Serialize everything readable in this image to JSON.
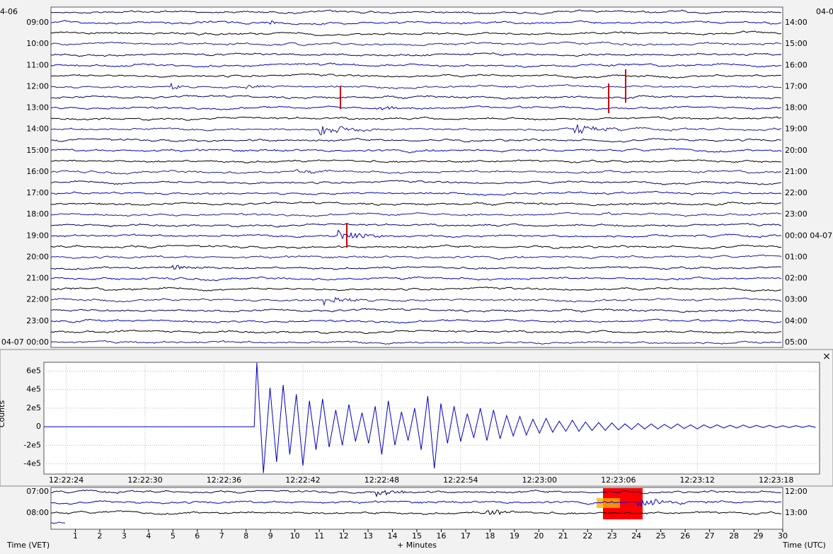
{
  "top_helicorder": {
    "corner_left": "4-06",
    "corner_right": "04-0",
    "left_labels": [
      "09:00",
      "10:00",
      "11:00",
      "12:00",
      "13:00",
      "14:00",
      "15:00",
      "16:00",
      "17:00",
      "18:00",
      "19:00",
      "20:00",
      "21:00",
      "22:00",
      "23:00",
      "04-07 00:00"
    ],
    "right_labels": [
      "14:00",
      "15:00",
      "16:00",
      "17:00",
      "18:00",
      "19:00",
      "20:00",
      "21:00",
      "22:00",
      "23:00",
      "00:00 04-07",
      "01:00",
      "02:00",
      "03:00",
      "04:00",
      "05:00"
    ]
  },
  "chart_data": {
    "type": "line",
    "y_label": "Counts",
    "color": "#0000cc",
    "x": [
      44542.3,
      44558.3,
      44558.5,
      44559,
      44559.5,
      44560,
      44560.5,
      44561,
      44561.5,
      44562,
      44562.5,
      44563,
      44563.5,
      44564,
      44564.5,
      44565,
      44565.5,
      44566,
      44566.5,
      44567,
      44567.5,
      44568,
      44568.5,
      44569,
      44569.5,
      44570,
      44570.5,
      44571,
      44571.5,
      44572,
      44572.5,
      44573,
      44573.5,
      44574,
      44574.5,
      44575,
      44575.5,
      44576,
      44576.5,
      44577,
      44577.5,
      44578,
      44578.5,
      44579,
      44579.5,
      44580,
      44580.5,
      44581,
      44581.5,
      44582,
      44582.5,
      44583,
      44583.5,
      44584,
      44584.5,
      44585,
      44585.5,
      44586,
      44586.5,
      44587,
      44587.5,
      44588,
      44588.5,
      44589,
      44589.5,
      44590,
      44590.5,
      44591,
      44591.5,
      44592,
      44592.5,
      44593,
      44593.5,
      44594,
      44594.5,
      44595,
      44595.5,
      44596,
      44596.5,
      44597,
      44597.5,
      44598,
      44598.5,
      44599,
      44599.5,
      44600,
      44600.5,
      44601
    ],
    "values": [
      0,
      0,
      690000,
      -500000,
      420000,
      -380000,
      450000,
      -300000,
      350000,
      -420000,
      280000,
      -250000,
      300000,
      -220000,
      180000,
      -200000,
      240000,
      -160000,
      150000,
      -180000,
      220000,
      -300000,
      280000,
      -200000,
      160000,
      -150000,
      200000,
      -250000,
      330000,
      -450000,
      250000,
      -180000,
      220000,
      -160000,
      140000,
      -120000,
      200000,
      -150000,
      180000,
      -130000,
      120000,
      -100000,
      110000,
      -90000,
      80000,
      -70000,
      90000,
      -60000,
      60000,
      -50000,
      70000,
      -50000,
      50000,
      -40000,
      45000,
      -40000,
      40000,
      -35000,
      30000,
      -30000,
      35000,
      -25000,
      30000,
      -25000,
      25000,
      -20000,
      30000,
      -20000,
      20000,
      -25000,
      20000,
      -15000,
      20000,
      -15000,
      15000,
      -15000,
      18000,
      -12000,
      15000,
      -10000,
      15000,
      -12000,
      10000,
      -10000,
      12000,
      -8000,
      10000,
      -8000
    ],
    "xlim": [
      44542.3,
      44601.3
    ],
    "xticks": [
      {
        "value": 44544,
        "label": "12:22:24"
      },
      {
        "value": 44550,
        "label": "12:22:30"
      },
      {
        "value": 44556,
        "label": "12:22:36"
      },
      {
        "value": 44562,
        "label": "12:22:42"
      },
      {
        "value": 44568,
        "label": "12:22:48"
      },
      {
        "value": 44574,
        "label": "12:22:54"
      },
      {
        "value": 44580,
        "label": "12:23:00"
      },
      {
        "value": 44586,
        "label": "12:23:06"
      },
      {
        "value": 44592,
        "label": "12:23:12"
      },
      {
        "value": 44598,
        "label": "12:23:18"
      }
    ],
    "ylim": [
      -511000,
      695000
    ],
    "yticks": [
      {
        "value": 600000,
        "label": "6e5"
      },
      {
        "value": 400000,
        "label": "4e5"
      },
      {
        "value": 200000,
        "label": "2e5"
      },
      0,
      {
        "value": -200000,
        "label": "-2e5"
      },
      {
        "value": -400000,
        "label": "-4e5"
      }
    ],
    "grid": true
  },
  "bottom_helicorder": {
    "left_labels": [
      "07:00",
      "08:00"
    ],
    "right_labels": [
      "12:00",
      "13:00"
    ],
    "xlim": [
      0,
      30
    ],
    "xticks": [
      1,
      2,
      3,
      4,
      5,
      6,
      7,
      8,
      9,
      10,
      11,
      12,
      13,
      14,
      15,
      16,
      17,
      18,
      19,
      20,
      21,
      22,
      23,
      24,
      25,
      26,
      27,
      28,
      29,
      30
    ],
    "x_label": "+ Minutes",
    "left_axis_label": "Time (VET)",
    "right_axis_label": "Time (UTC)"
  },
  "close_button": "×"
}
